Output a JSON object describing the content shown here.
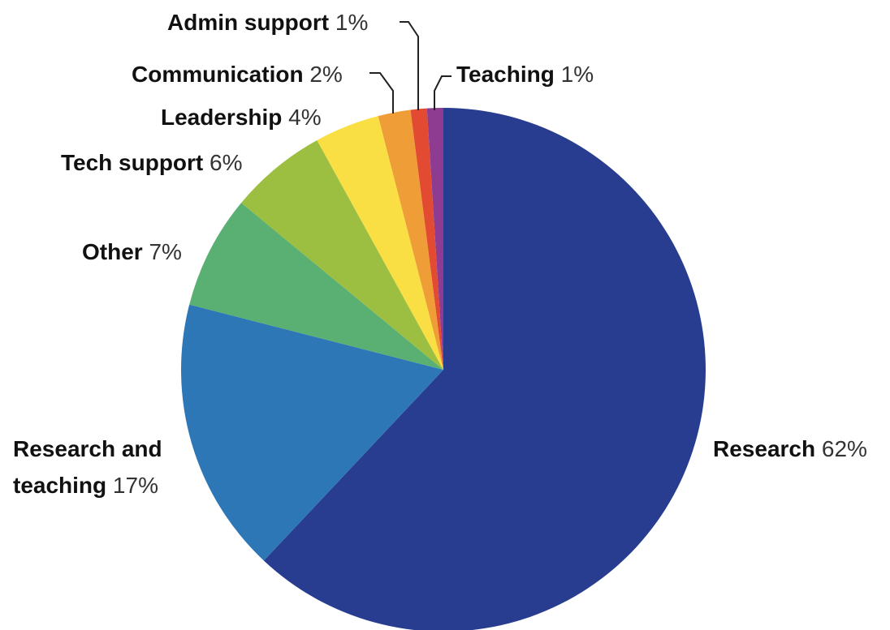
{
  "chart_data": {
    "type": "pie",
    "unit": "%",
    "slices": [
      {
        "label": "Research",
        "value": 62,
        "value_label": "62%",
        "color": "#283d8f"
      },
      {
        "label": "Research and teaching",
        "label_lines": [
          "Research and",
          "teaching"
        ],
        "value": 17,
        "value_label": "17%",
        "color": "#2e77b6"
      },
      {
        "label": "Other",
        "value": 7,
        "value_label": "7%",
        "color": "#5aaf72"
      },
      {
        "label": "Tech support",
        "value": 6,
        "value_label": "6%",
        "color": "#9cbf41"
      },
      {
        "label": "Leadership",
        "value": 4,
        "value_label": "4%",
        "color": "#f9df43"
      },
      {
        "label": "Communication",
        "value": 2,
        "value_label": "2%",
        "color": "#ef9e37"
      },
      {
        "label": "Admin support",
        "value": 1,
        "value_label": "1%",
        "color": "#e24b31"
      },
      {
        "label": "Teaching",
        "value": 1,
        "value_label": "1%",
        "color": "#8e3c92"
      }
    ]
  }
}
